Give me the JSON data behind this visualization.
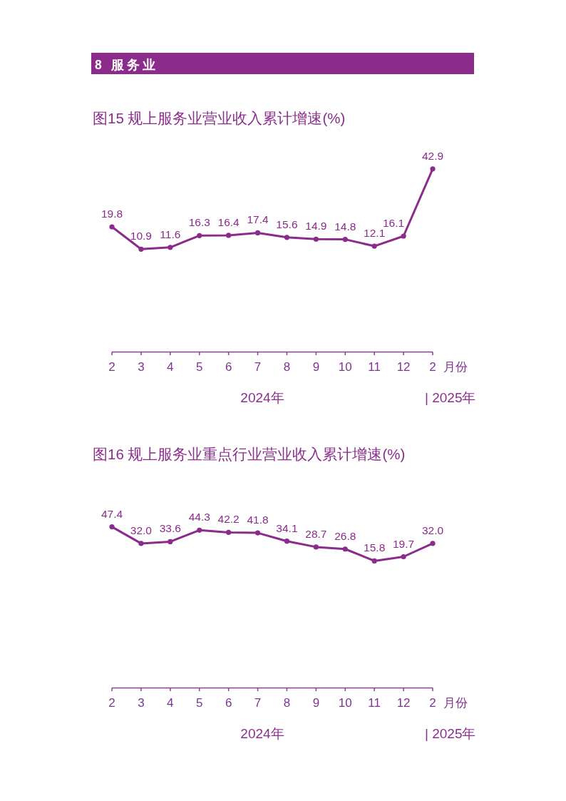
{
  "chart_data": [
    {
      "type": "line",
      "title": "图15 规上服务业营业收入累计增速(%)",
      "xlabel": "月份",
      "categories": [
        "2",
        "3",
        "4",
        "5",
        "6",
        "7",
        "8",
        "9",
        "10",
        "11",
        "12",
        "2"
      ],
      "series": [
        {
          "color": "#8b2b8b",
          "values": [
            19.8,
            10.9,
            11.6,
            16.3,
            16.4,
            17.4,
            15.6,
            14.9,
            14.8,
            12.1,
            16.1,
            42.9
          ],
          "value_labels": [
            "19.8",
            "10.9",
            "11.6",
            "16.3",
            "16.4",
            "17.4",
            "15.6",
            "14.9",
            "14.8",
            "12.1",
            "16.1",
            "42.9"
          ]
        }
      ],
      "marker": "circle",
      "line_style": "solid",
      "annotations": [
        "8 服务业",
        "2024年",
        "| 2025年"
      ]
    },
    {
      "type": "line",
      "title": "图16 规上服务业重点行业营业收入累计增速(%)",
      "xlabel": "月份",
      "categories": [
        "2",
        "3",
        "4",
        "5",
        "6",
        "7",
        "8",
        "9",
        "10",
        "11",
        "12",
        "2"
      ],
      "series": [
        {
          "color": "#8b2b8b",
          "values": [
            47.4,
            32.0,
            33.6,
            44.3,
            42.2,
            41.8,
            34.1,
            28.7,
            26.8,
            15.8,
            19.7,
            32.0
          ],
          "value_labels": [
            "47.4",
            "32.0",
            "33.6",
            "44.3",
            "42.2",
            "41.8",
            "34.1",
            "28.7",
            "26.8",
            "15.8",
            "19.7",
            "32.0"
          ]
        }
      ],
      "marker": "circle",
      "line_style": "solid",
      "annotations": [
        "2024年",
        "| 2025年"
      ]
    }
  ]
}
